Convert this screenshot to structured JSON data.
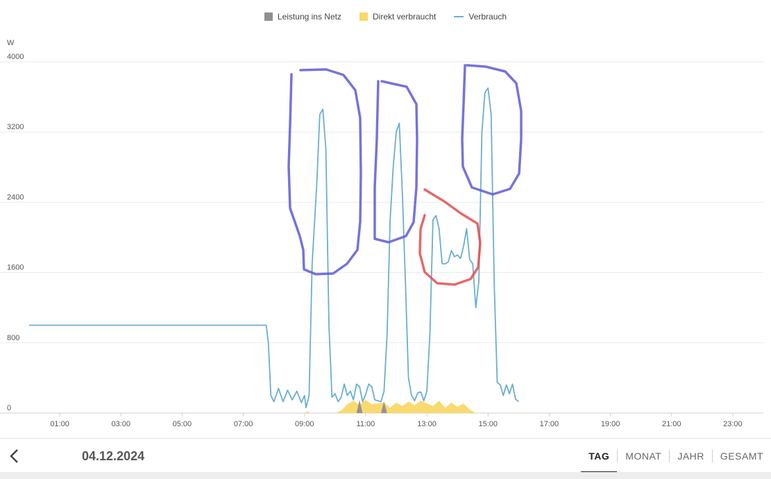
{
  "legend": [
    {
      "label": "Leistung ins Netz",
      "color": "#909090",
      "kind": "box"
    },
    {
      "label": "Direkt verbraucht",
      "color": "#f9d867",
      "kind": "box"
    },
    {
      "label": "Verbrauch",
      "color": "#6aaed0",
      "kind": "line"
    }
  ],
  "chart_data": {
    "type": "line",
    "ylabel": "W",
    "ylim": [
      0,
      4000
    ],
    "yticks": [
      "0",
      "800",
      "1600",
      "2400",
      "3200",
      "4000"
    ],
    "xlim": [
      0,
      24
    ],
    "xticks": [
      "01:00",
      "03:00",
      "05:00",
      "07:00",
      "09:00",
      "11:00",
      "13:00",
      "15:00",
      "17:00",
      "19:00",
      "21:00",
      "23:00"
    ],
    "series": [
      {
        "name": "Verbrauch",
        "color": "#6aaed0",
        "points": [
          [
            0,
            1000
          ],
          [
            7.75,
            1000
          ],
          [
            7.82,
            800
          ],
          [
            7.9,
            200
          ],
          [
            8.0,
            130
          ],
          [
            8.15,
            280
          ],
          [
            8.3,
            130
          ],
          [
            8.45,
            260
          ],
          [
            8.6,
            150
          ],
          [
            8.75,
            250
          ],
          [
            8.9,
            120
          ],
          [
            9.0,
            200
          ],
          [
            9.05,
            60
          ],
          [
            9.15,
            200
          ],
          [
            9.25,
            1700
          ],
          [
            9.4,
            2600
          ],
          [
            9.5,
            3400
          ],
          [
            9.6,
            3460
          ],
          [
            9.7,
            3000
          ],
          [
            9.8,
            1000
          ],
          [
            9.9,
            180
          ],
          [
            10.0,
            220
          ],
          [
            10.1,
            130
          ],
          [
            10.2,
            180
          ],
          [
            10.3,
            330
          ],
          [
            10.4,
            200
          ],
          [
            10.5,
            250
          ],
          [
            10.6,
            150
          ],
          [
            10.7,
            330
          ],
          [
            10.8,
            300
          ],
          [
            10.9,
            130
          ],
          [
            11.0,
            210
          ],
          [
            11.1,
            330
          ],
          [
            11.2,
            300
          ],
          [
            11.3,
            150
          ],
          [
            11.5,
            130
          ],
          [
            11.6,
            250
          ],
          [
            11.7,
            900
          ],
          [
            11.8,
            2200
          ],
          [
            11.9,
            2800
          ],
          [
            12.0,
            3200
          ],
          [
            12.1,
            3300
          ],
          [
            12.2,
            2500
          ],
          [
            12.3,
            1500
          ],
          [
            12.4,
            400
          ],
          [
            12.5,
            200
          ],
          [
            12.6,
            140
          ],
          [
            12.7,
            230
          ],
          [
            12.8,
            240
          ],
          [
            12.9,
            140
          ],
          [
            13.0,
            250
          ],
          [
            13.1,
            900
          ],
          [
            13.2,
            2200
          ],
          [
            13.3,
            2250
          ],
          [
            13.4,
            2100
          ],
          [
            13.5,
            1700
          ],
          [
            13.6,
            1700
          ],
          [
            13.7,
            1720
          ],
          [
            13.8,
            1850
          ],
          [
            13.9,
            1780
          ],
          [
            14.0,
            1800
          ],
          [
            14.1,
            1760
          ],
          [
            14.2,
            1900
          ],
          [
            14.3,
            2100
          ],
          [
            14.4,
            1750
          ],
          [
            14.5,
            1700
          ],
          [
            14.6,
            1200
          ],
          [
            14.7,
            1500
          ],
          [
            14.8,
            3200
          ],
          [
            14.9,
            3650
          ],
          [
            15.0,
            3700
          ],
          [
            15.1,
            3400
          ],
          [
            15.2,
            1500
          ],
          [
            15.3,
            350
          ],
          [
            15.4,
            320
          ],
          [
            15.5,
            200
          ],
          [
            15.6,
            320
          ],
          [
            15.7,
            220
          ],
          [
            15.8,
            330
          ],
          [
            15.9,
            160
          ],
          [
            16.0,
            130
          ]
        ]
      },
      {
        "name": "Direkt verbraucht",
        "color": "#f9d867",
        "points": [
          [
            9.0,
            0
          ],
          [
            9.1,
            20
          ],
          [
            9.2,
            0
          ],
          [
            10.0,
            0
          ],
          [
            10.2,
            30
          ],
          [
            10.4,
            100
          ],
          [
            10.6,
            140
          ],
          [
            10.8,
            90
          ],
          [
            11.0,
            150
          ],
          [
            11.2,
            100
          ],
          [
            11.4,
            110
          ],
          [
            11.6,
            120
          ],
          [
            11.8,
            60
          ],
          [
            12.0,
            120
          ],
          [
            12.2,
            80
          ],
          [
            12.4,
            130
          ],
          [
            12.6,
            90
          ],
          [
            12.8,
            140
          ],
          [
            13.0,
            110
          ],
          [
            13.2,
            80
          ],
          [
            13.4,
            140
          ],
          [
            13.6,
            60
          ],
          [
            13.8,
            120
          ],
          [
            14.0,
            70
          ],
          [
            14.2,
            110
          ],
          [
            14.4,
            40
          ],
          [
            14.6,
            0
          ]
        ]
      },
      {
        "name": "Leistung ins Netz",
        "color": "#909090",
        "points": [
          [
            10.7,
            0
          ],
          [
            10.8,
            150
          ],
          [
            10.9,
            0
          ],
          [
            11.5,
            0
          ],
          [
            11.6,
            130
          ],
          [
            11.7,
            0
          ]
        ]
      }
    ]
  },
  "annotations": {
    "blue_color": "#5d5bd6",
    "red_color": "#e24e4e"
  },
  "footer": {
    "back_icon": "chevron-left-icon",
    "date": "04.12.2024",
    "tabs": [
      {
        "label": "TAG",
        "active": true
      },
      {
        "label": "MONAT",
        "active": false
      },
      {
        "label": "JAHR",
        "active": false
      },
      {
        "label": "GESAMT",
        "active": false
      }
    ]
  }
}
